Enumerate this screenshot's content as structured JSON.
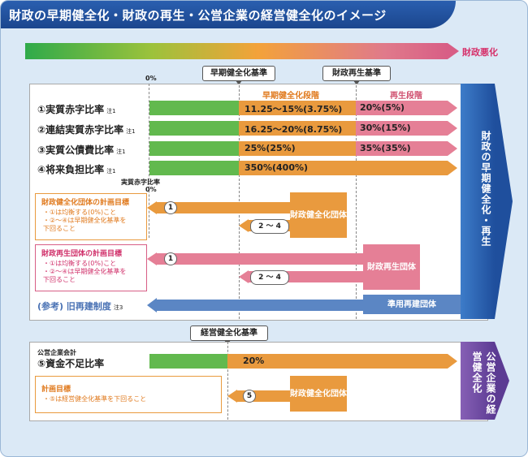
{
  "title": "財政の早期健全化・財政の再生・公営企業の経営健全化のイメージ",
  "gradient_label": "財政悪化",
  "standards": {
    "early": "早期健全化基準",
    "rebuild": "財政再生基準",
    "management": "経営健全化基準"
  },
  "zero_label": "0%",
  "stages": {
    "early": "早期健全化段階",
    "rebuild": "再生段階"
  },
  "rows": [
    {
      "label": "①実質赤字比率",
      "note": "注1",
      "early_val": "11.25～15%(3.75%)",
      "rebuild_val": "20%(5%)"
    },
    {
      "label": "②連結実質赤字比率",
      "note": "注1",
      "early_val": "16.25～20%(8.75%)",
      "rebuild_val": "30%(15%)"
    },
    {
      "label": "③実質公債費比率",
      "note": "注1",
      "early_val": "25%(25%)",
      "rebuild_val": "35%(35%)"
    },
    {
      "label": "④将来負担比率",
      "note": "注1",
      "early_val": "350%(400%)",
      "rebuild_val": ""
    }
  ],
  "deficit_zero_label": "実質赤字比率",
  "side_label_1": "財政の早期健全化・再生",
  "side_label_2": "公営企業の経営健全化",
  "plans": [
    {
      "title": "財政健全化団体の計画目標",
      "lines": [
        "・①は均衡する(0%)こと",
        "・②～④は早期健全化基準を",
        "下回ること"
      ]
    },
    {
      "title": "財政再生団体の計画目標",
      "lines": [
        "・①は均衡する(0%)こと",
        "・②～④は早期健全化基準を",
        "下回ること"
      ]
    }
  ],
  "entities": {
    "healthy": "財政健全化団体",
    "rebuild": "財政再生団体",
    "old": "準用再建団体",
    "mgmt": "財政健全化団体"
  },
  "markers": {
    "one": "1",
    "two_four": "2 ～ 4",
    "five": "5"
  },
  "reference": {
    "label": "(参考) 旧再建制度",
    "note": "注3"
  },
  "enterprise": {
    "small": "公営企業会計",
    "label": "⑤資金不足比率",
    "value": "20%",
    "plan_title": "計画目標",
    "plan_line": "・⑤は経営健全化基準を下回ること"
  },
  "colors": {
    "green": "#62b94e",
    "orange": "#e99a3e",
    "pink": "#e57f96",
    "blue": "#5b86c4"
  }
}
